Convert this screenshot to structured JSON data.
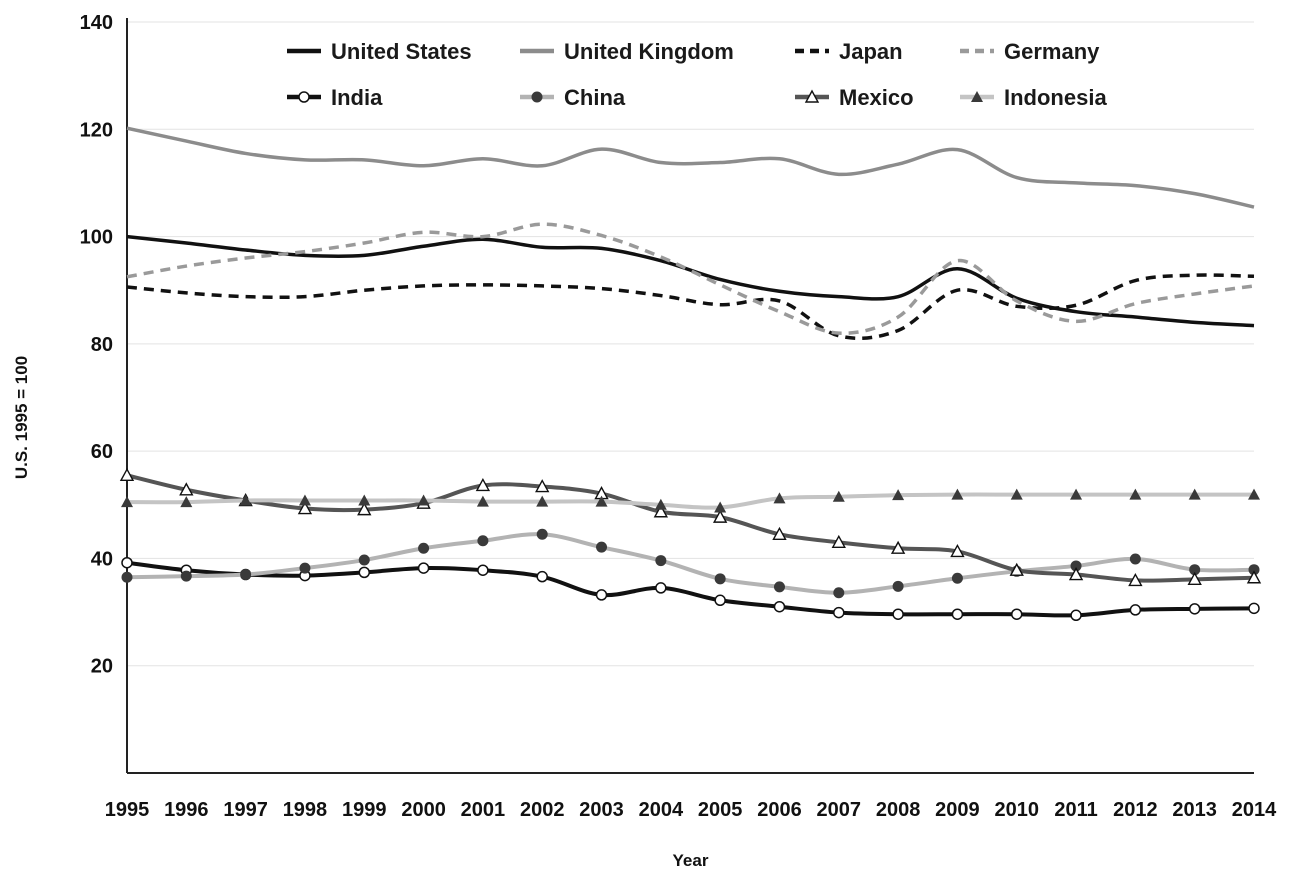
{
  "chart_data": {
    "type": "line",
    "title": "",
    "xlabel": "Year",
    "ylabel": "U.S. 1995 = 100",
    "ylim": [
      0,
      140
    ],
    "yticks": [
      20,
      40,
      60,
      80,
      100,
      120,
      140
    ],
    "grid": true,
    "legend_position": "top",
    "x": [
      "1995",
      "1996",
      "1997",
      "1998",
      "1999",
      "2000",
      "2001",
      "2002",
      "2003",
      "2004",
      "2005",
      "2006",
      "2007",
      "2008",
      "2009",
      "2010",
      "2011",
      "2012",
      "2013",
      "2014"
    ],
    "series": [
      {
        "name": "United States",
        "color": "#111111",
        "dash": "solid",
        "marker": "none",
        "values": [
          100,
          98.8,
          97.5,
          96.5,
          96.5,
          98.2,
          99.5,
          98.0,
          97.8,
          95.5,
          92.0,
          89.8,
          88.8,
          88.8,
          94.0,
          88.5,
          86.0,
          85.0,
          84.0,
          83.4
        ]
      },
      {
        "name": "United Kingdom",
        "color": "#8c8c8c",
        "dash": "solid",
        "marker": "none",
        "values": [
          120.2,
          117.8,
          115.5,
          114.3,
          114.3,
          113.2,
          114.5,
          113.2,
          116.3,
          113.8,
          113.8,
          114.5,
          111.6,
          113.5,
          116.2,
          111.0,
          110.0,
          109.5,
          108.0,
          105.5
        ]
      },
      {
        "name": "Japan",
        "color": "#111111",
        "dash": "dashed",
        "marker": "none",
        "values": [
          90.6,
          89.5,
          88.8,
          88.8,
          90.0,
          90.8,
          91.0,
          90.8,
          90.3,
          89.0,
          87.3,
          88.0,
          81.5,
          82.5,
          90.0,
          87.0,
          87.2,
          91.8,
          92.8,
          92.6
        ]
      },
      {
        "name": "Germany",
        "color": "#9a9a9a",
        "dash": "dashed",
        "marker": "none",
        "values": [
          92.5,
          94.5,
          96.0,
          97.2,
          98.8,
          100.8,
          100.0,
          102.3,
          100.2,
          96.2,
          91.0,
          86.0,
          82.0,
          85.0,
          95.5,
          88.0,
          84.2,
          87.5,
          89.3,
          90.8
        ]
      },
      {
        "name": "India",
        "color": "#111111",
        "dash": "solid",
        "marker": "circle-open",
        "values": [
          39.2,
          37.8,
          37.0,
          36.8,
          37.4,
          38.2,
          37.8,
          36.6,
          33.2,
          34.5,
          32.2,
          31.0,
          29.9,
          29.6,
          29.6,
          29.6,
          29.4,
          30.4,
          30.6,
          30.7
        ]
      },
      {
        "name": "China",
        "color": "#b3b3b3",
        "dash": "solid",
        "marker": "circle-filled",
        "values": [
          36.5,
          36.7,
          37.0,
          38.2,
          39.7,
          41.9,
          43.3,
          44.5,
          42.1,
          39.6,
          36.2,
          34.7,
          33.6,
          34.8,
          36.3,
          37.6,
          38.6,
          39.9,
          37.9,
          37.9
        ]
      },
      {
        "name": "Mexico",
        "color": "#555555",
        "dash": "solid",
        "marker": "triangle-open",
        "values": [
          55.5,
          52.8,
          50.8,
          49.3,
          49.1,
          50.3,
          53.6,
          53.4,
          52.1,
          48.7,
          47.7,
          44.5,
          43.0,
          41.9,
          41.3,
          37.8,
          37.0,
          35.9,
          36.1,
          36.4
        ]
      },
      {
        "name": "Indonesia",
        "color": "#c4c4c4",
        "dash": "solid",
        "marker": "triangle-filled",
        "values": [
          50.5,
          50.5,
          50.8,
          50.8,
          50.8,
          50.8,
          50.6,
          50.6,
          50.6,
          50.0,
          49.5,
          51.2,
          51.5,
          51.8,
          51.9,
          51.9,
          51.9,
          51.9,
          51.9,
          51.9
        ]
      }
    ]
  }
}
